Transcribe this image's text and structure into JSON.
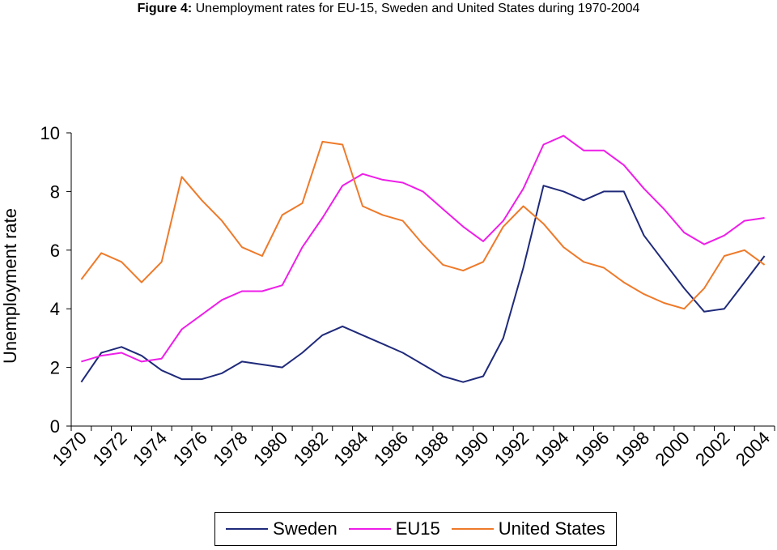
{
  "figure": {
    "label": "Figure 4:",
    "caption": "Unemployment rates for EU-15, Sweden and United States during 1970-2004"
  },
  "chart_data": {
    "type": "line",
    "title": "Figure 4: Unemployment rates for EU-15, Sweden and United States during 1970-2004",
    "xlabel": "",
    "ylabel": "Unemployment rate",
    "x": [
      1970,
      1971,
      1972,
      1973,
      1974,
      1975,
      1976,
      1977,
      1978,
      1979,
      1980,
      1981,
      1982,
      1983,
      1984,
      1985,
      1986,
      1987,
      1988,
      1989,
      1990,
      1991,
      1992,
      1993,
      1994,
      1995,
      1996,
      1997,
      1998,
      1999,
      2000,
      2001,
      2002,
      2003,
      2004
    ],
    "x_tick_labels": [
      "1970",
      "1972",
      "1974",
      "1976",
      "1978",
      "1980",
      "1982",
      "1984",
      "1986",
      "1988",
      "1990",
      "1992",
      "1994",
      "1996",
      "1998",
      "2000",
      "2002",
      "2004"
    ],
    "y_ticks": [
      0,
      2,
      4,
      6,
      8,
      10
    ],
    "ylim": [
      0,
      10
    ],
    "grid": false,
    "legend_position": "bottom",
    "series": [
      {
        "name": "Sweden",
        "color": "#1f2a7a",
        "values": [
          1.5,
          2.5,
          2.7,
          2.4,
          1.9,
          1.6,
          1.6,
          1.8,
          2.2,
          2.1,
          2.0,
          2.5,
          3.1,
          3.4,
          3.1,
          2.8,
          2.5,
          2.1,
          1.7,
          1.5,
          1.7,
          3.0,
          5.4,
          8.2,
          8.0,
          7.7,
          8.0,
          8.0,
          6.5,
          5.6,
          4.7,
          3.9,
          4.0,
          4.9,
          5.8
        ]
      },
      {
        "name": "EU15",
        "color": "#ee1ee8",
        "values": [
          2.2,
          2.4,
          2.5,
          2.2,
          2.3,
          3.3,
          3.8,
          4.3,
          4.6,
          4.6,
          4.8,
          6.1,
          7.1,
          8.2,
          8.6,
          8.4,
          8.3,
          8.0,
          7.4,
          6.8,
          6.3,
          7.0,
          8.1,
          9.6,
          9.9,
          9.4,
          9.4,
          8.9,
          8.1,
          7.4,
          6.6,
          6.2,
          6.5,
          7.0,
          7.1
        ]
      },
      {
        "name": "United States",
        "color": "#ee7a2a",
        "values": [
          5.0,
          5.9,
          5.6,
          4.9,
          5.6,
          8.5,
          7.7,
          7.0,
          6.1,
          5.8,
          7.2,
          7.6,
          9.7,
          9.6,
          7.5,
          7.2,
          7.0,
          6.2,
          5.5,
          5.3,
          5.6,
          6.8,
          7.5,
          6.9,
          6.1,
          5.6,
          5.4,
          4.9,
          4.5,
          4.2,
          4.0,
          4.7,
          5.8,
          6.0,
          5.5
        ]
      }
    ]
  }
}
